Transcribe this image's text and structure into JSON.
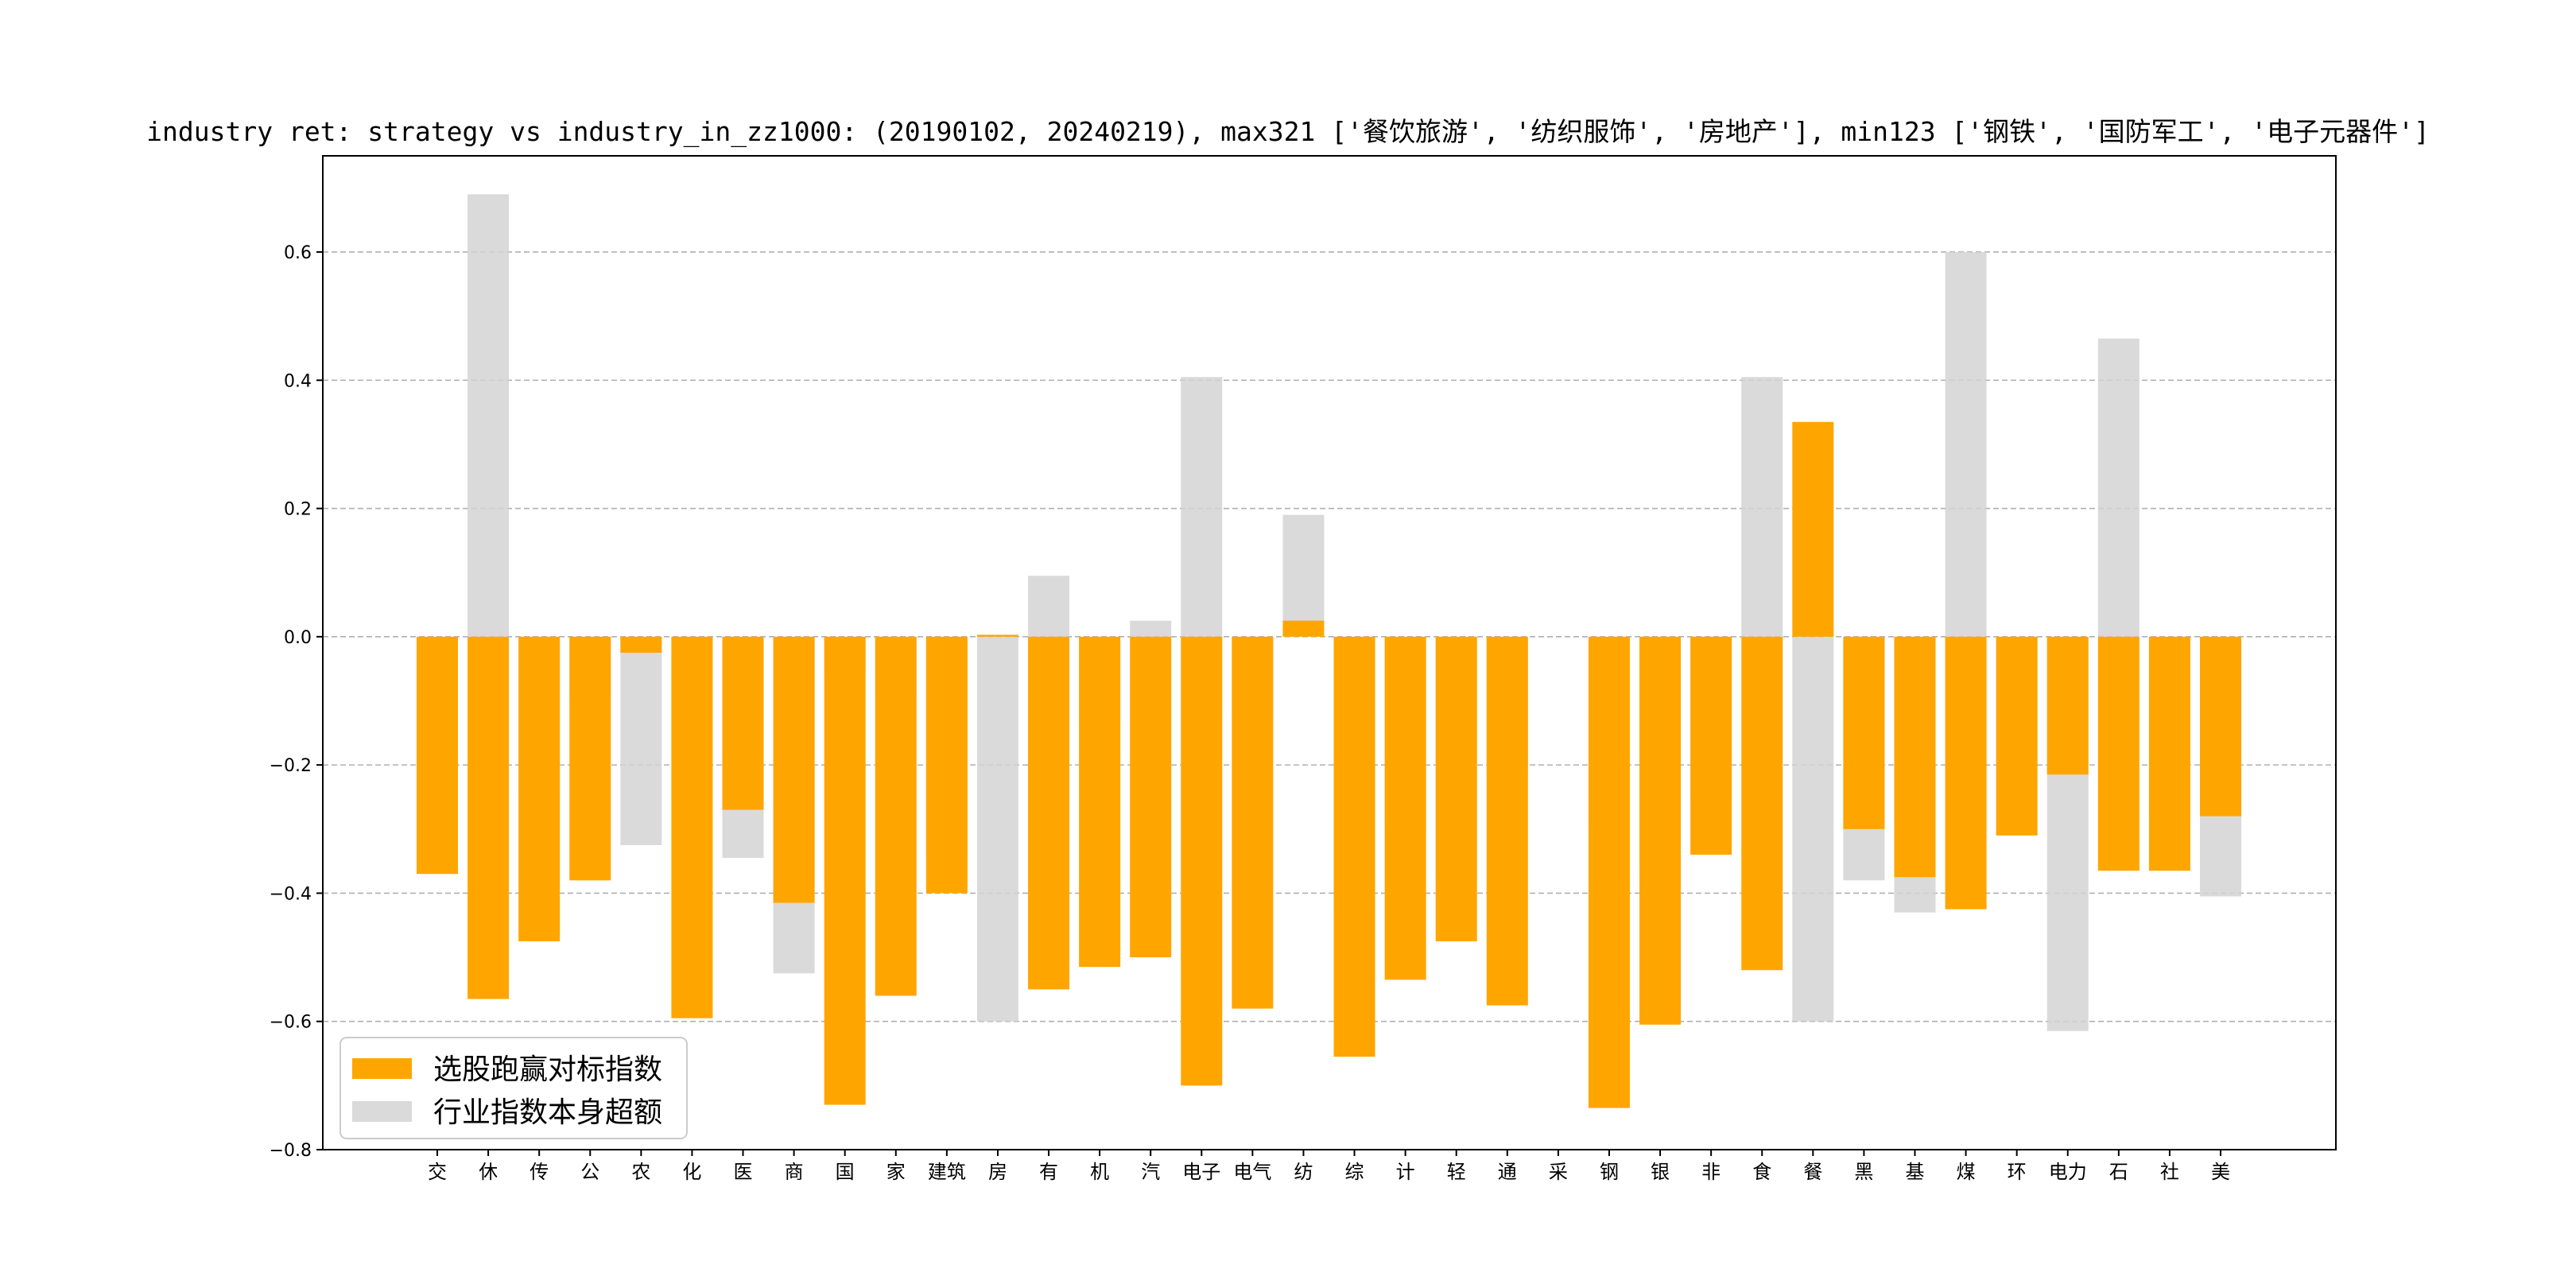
{
  "chart_data": {
    "type": "bar",
    "title": "industry ret: strategy vs industry_in_zz1000: (20190102, 20240219), max321 ['餐饮旅游', '纺织服饰', '房地产'], min123 ['钢铁', '国防军工', '电子元器件']",
    "xlabel": "",
    "ylabel": "",
    "ylim": [
      -0.8,
      0.75
    ],
    "yticks": [
      -0.8,
      -0.6,
      -0.4,
      -0.2,
      0.0,
      0.2,
      0.4,
      0.6
    ],
    "ytick_labels": [
      "−0.8",
      "−0.6",
      "−0.4",
      "−0.2",
      "0.0",
      "0.2",
      "0.4",
      "0.6"
    ],
    "grid": "y-dashed",
    "legend_position": "lower-left",
    "categories": [
      "交",
      "休",
      "传",
      "公",
      "农",
      "化",
      "医",
      "商",
      "国",
      "家",
      "建筑",
      "房",
      "有",
      "机",
      "汽",
      "电子",
      "电气",
      "纺",
      "综",
      "计",
      "轻",
      "通",
      "采",
      "钢",
      "银",
      "非",
      "食",
      "餐",
      "黑",
      "基",
      "煤",
      "环",
      "电力",
      "石",
      "社",
      "美"
    ],
    "series": [
      {
        "name": "选股跑赢对标指数",
        "color": "#FFA500",
        "values": [
          -0.37,
          -0.565,
          -0.475,
          -0.38,
          -0.025,
          -0.595,
          -0.27,
          -0.415,
          -0.73,
          -0.56,
          -0.4,
          0.003,
          -0.55,
          -0.515,
          -0.5,
          -0.7,
          -0.58,
          0.025,
          -0.655,
          -0.535,
          -0.475,
          -0.575,
          0.0,
          -0.735,
          -0.605,
          -0.34,
          -0.52,
          0.335,
          -0.3,
          -0.375,
          -0.425,
          -0.31,
          -0.215,
          -0.365,
          -0.365,
          -0.28
        ]
      },
      {
        "name": "行业指数本身超额",
        "color": "#D3D3D3",
        "alpha": 0.85,
        "values": [
          -0.245,
          0.69,
          -0.25,
          -0.095,
          -0.325,
          -0.255,
          -0.345,
          -0.525,
          -0.055,
          -0.095,
          -0.34,
          -0.6,
          0.095,
          -0.14,
          0.025,
          0.405,
          -0.125,
          0.19,
          -0.43,
          -0.3,
          -0.375,
          -0.215,
          0.0,
          -0.29,
          -0.365,
          -0.25,
          0.405,
          -0.6,
          -0.38,
          -0.43,
          0.6,
          -0.195,
          -0.615,
          0.465,
          -0.27,
          -0.405
        ]
      }
    ]
  }
}
